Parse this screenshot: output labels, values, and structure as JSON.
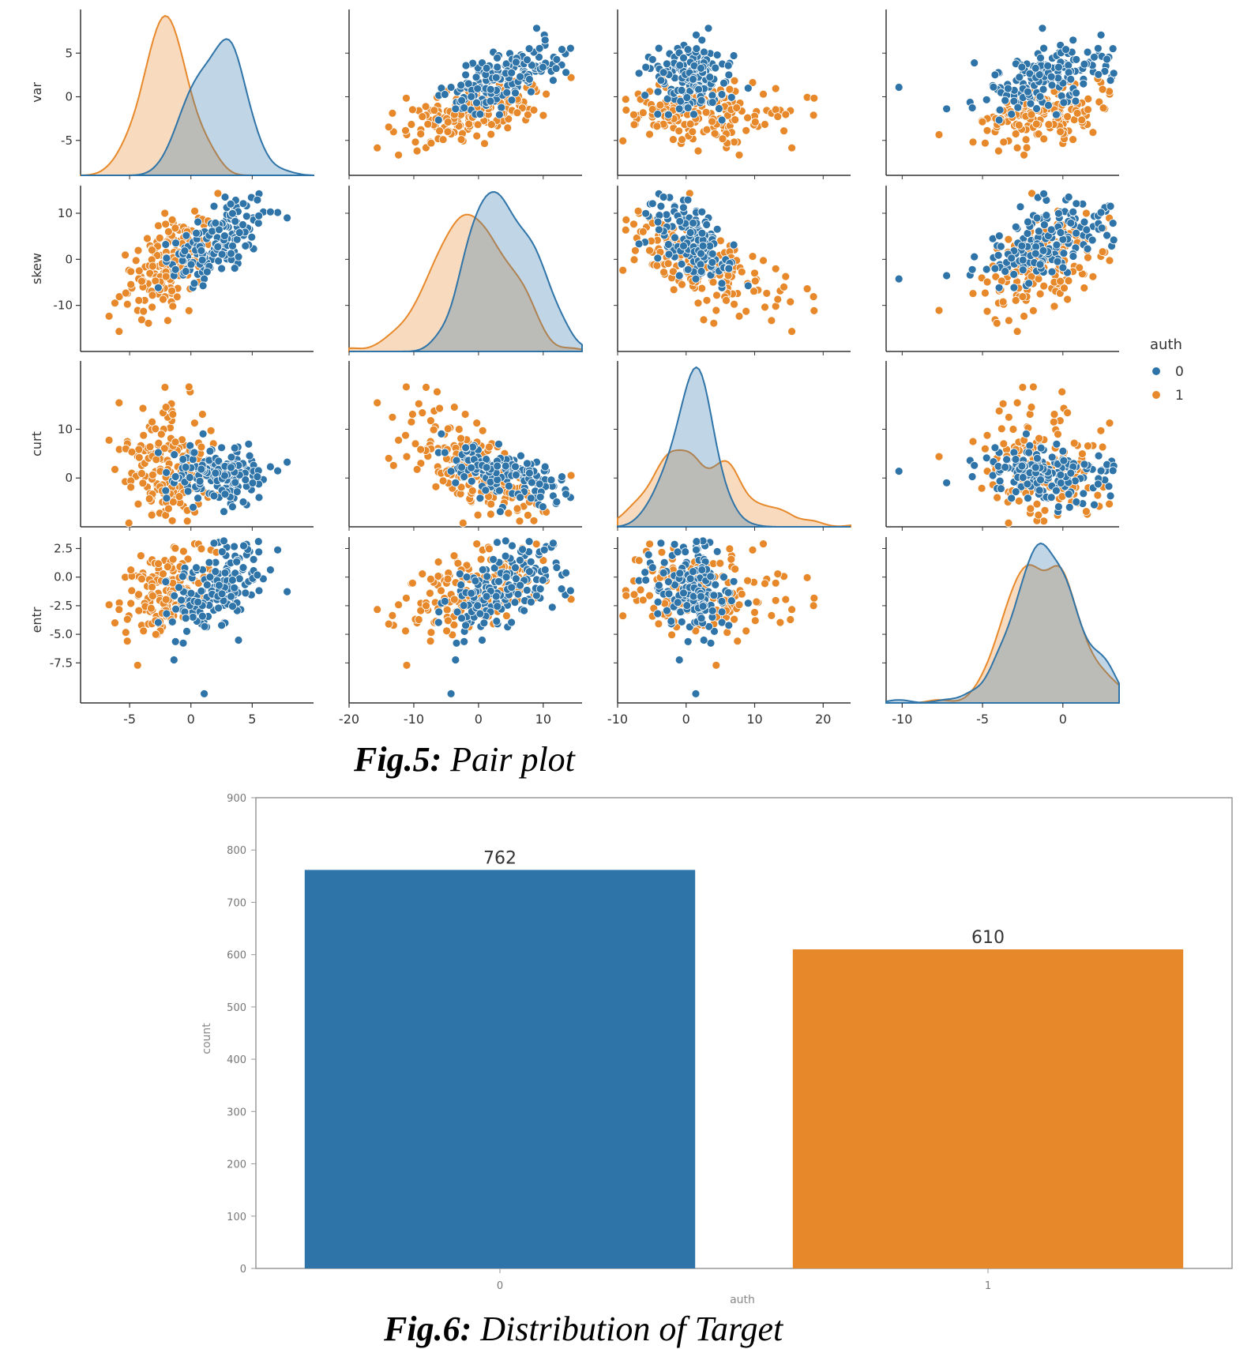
{
  "figures": {
    "fig5": {
      "number": "Fig.5:",
      "text": "Pair plot"
    },
    "fig6": {
      "number": "Fig.6:",
      "text": "Distribution of Target"
    }
  },
  "colors": {
    "class0": "#2f74a8",
    "class1": "#e7892b",
    "overlap": "#b9a994",
    "axis": "#333333"
  },
  "chart_data": [
    {
      "type": "scatter",
      "subtype": "pairplot",
      "variables": [
        "var",
        "skew",
        "curt",
        "entr"
      ],
      "hue": "auth",
      "legend": {
        "title": "auth",
        "entries": [
          "0",
          "1"
        ],
        "placement": "right"
      },
      "ranges": {
        "var": [
          -9,
          10
        ],
        "skew": [
          -20,
          16
        ],
        "curt": [
          -10,
          24
        ],
        "entr": [
          -11,
          3.5
        ]
      },
      "ticks": {
        "var": [
          "-5",
          "0",
          "5"
        ],
        "skew": [
          "-20",
          "-10",
          "0",
          "10"
        ],
        "curt": [
          "-10",
          "0",
          "10",
          "20"
        ],
        "entr": [
          "-10",
          "-5",
          "0"
        ]
      },
      "y_ticks": {
        "var": [
          "5",
          "0",
          "-5"
        ],
        "skew": [
          "10",
          "0",
          "-10"
        ],
        "curt": [
          "10",
          "0"
        ],
        "entr": [
          "2.5",
          "0.0",
          "-2.5",
          "-5.0",
          "-7.5"
        ]
      },
      "class_stats": {
        "0": {
          "var": [
            2.3,
            2.0
          ],
          "skew": [
            4.3,
            5.1
          ],
          "curt": [
            0.8,
            3.2
          ],
          "entr": [
            -1.1,
            2.1
          ]
        },
        "1": {
          "var": [
            -1.9,
            1.9
          ],
          "skew": [
            -1.0,
            5.4
          ],
          "curt": [
            2.1,
            5.3
          ],
          "entr": [
            -1.2,
            2.1
          ]
        }
      },
      "diagonal": "kde"
    },
    {
      "type": "bar",
      "categories": [
        "0",
        "1"
      ],
      "values": [
        762,
        610
      ],
      "data_labels": [
        "762",
        "610"
      ],
      "xlabel": "auth",
      "ylabel": "count",
      "ylim": [
        0,
        900
      ],
      "yticks": [
        "0",
        "100",
        "200",
        "300",
        "400",
        "500",
        "600",
        "700",
        "800",
        "900"
      ],
      "bar_colors": [
        "#2f74a8",
        "#e7892b"
      ]
    }
  ]
}
